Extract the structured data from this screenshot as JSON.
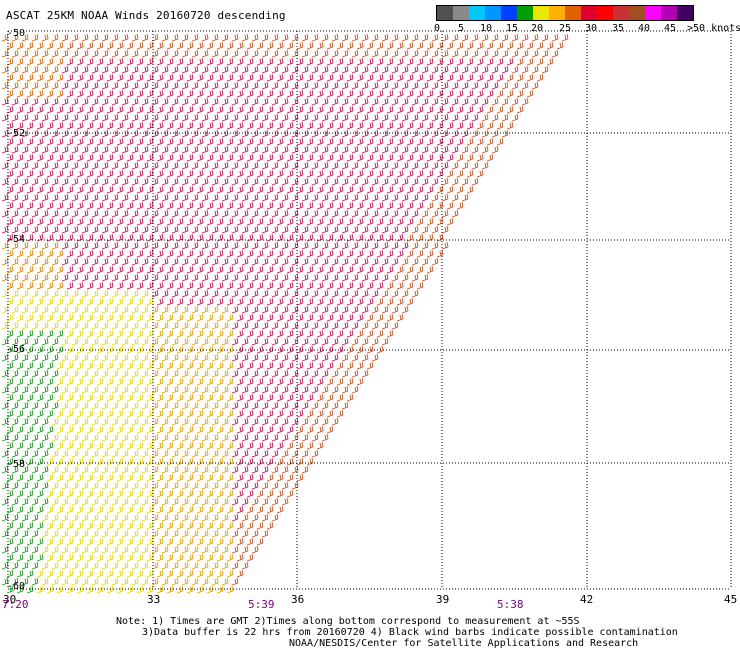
{
  "title": "ASCAT 25KM NOAA Winds 20160720 descending",
  "legend": {
    "labels": [
      "0",
      "5",
      "10",
      "15",
      "20",
      "25",
      "30",
      "35",
      "40",
      "45",
      ">50 knots"
    ],
    "colors": [
      "#505050",
      "#8a8a8a",
      "#00c8ff",
      "#0096ff",
      "#0040ff",
      "#00a000",
      "#e8e800",
      "#ffb000",
      "#e06000",
      "#e00030",
      "#ff0000",
      "#c83232",
      "#a05020",
      "#ff00ff",
      "#b400b4",
      "#400060"
    ]
  },
  "map": {
    "lat_labels": [
      "-50",
      "-52",
      "-54",
      "-56",
      "-58",
      "-60"
    ],
    "lon_labels": [
      "30",
      "33",
      "36",
      "39",
      "42",
      "45"
    ],
    "time_labels": [
      "7:20",
      "5:39",
      "5:38"
    ],
    "lon_range": [
      30,
      45
    ],
    "lat_range": [
      -50,
      -60
    ]
  },
  "notes": {
    "line1": "Note: 1) Times are GMT 2)Times along bottom correspond to measurement at ~55S",
    "line2": "3)Data buffer is 22 hrs from 20160720 4) Black wind barbs indicate possible contamination",
    "line3": "NOAA/NESDIS/Center for Satellite Applications and Research"
  }
}
